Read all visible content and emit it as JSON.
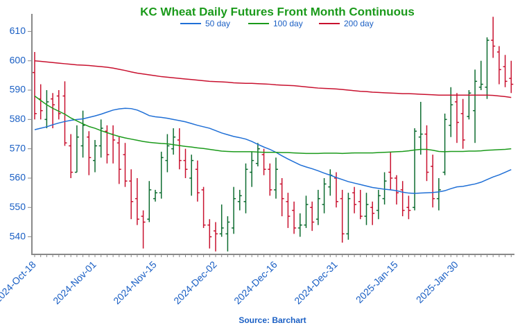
{
  "chart_data": {
    "type": "ohlc",
    "title": "KC Wheat Daily Futures Front Month Continuous",
    "source": "Source: Barchart",
    "categories": [
      "2024-Oct-18",
      null,
      null,
      null,
      null,
      null,
      null,
      null,
      null,
      null,
      "2024-Nov-01",
      null,
      null,
      null,
      null,
      null,
      null,
      null,
      null,
      null,
      "2024-Nov-15",
      null,
      null,
      null,
      null,
      null,
      null,
      null,
      null,
      null,
      "2024-Dec-02",
      null,
      null,
      null,
      null,
      null,
      null,
      null,
      null,
      null,
      "2024-Dec-16",
      null,
      null,
      null,
      null,
      null,
      null,
      null,
      null,
      null,
      "2024-Dec-31",
      null,
      null,
      null,
      null,
      null,
      null,
      null,
      null,
      null,
      "2025-Jan-15",
      null,
      null,
      null,
      null,
      null,
      null,
      null,
      null,
      null,
      "2025-Jan-30",
      null,
      null,
      null,
      null,
      null,
      null,
      null,
      null,
      null
    ],
    "open": [
      596,
      587,
      580,
      587,
      588,
      588,
      571,
      562,
      571,
      574,
      566,
      571,
      576,
      575,
      572,
      568,
      559,
      553,
      547,
      546,
      553,
      555,
      566,
      570,
      573,
      566,
      560,
      563,
      556,
      544,
      542,
      541,
      541,
      543,
      552,
      552,
      562,
      565,
      568,
      563,
      556,
      558,
      552,
      549,
      543,
      544,
      550,
      546,
      551,
      557,
      560,
      553,
      541,
      555,
      552,
      547,
      550,
      549,
      553,
      562,
      560,
      556,
      550,
      550,
      574,
      575,
      564,
      553,
      562,
      578,
      586,
      582,
      581,
      583,
      591,
      591,
      607,
      603,
      598,
      594
    ],
    "high": [
      603,
      592,
      590,
      589,
      590,
      593,
      575,
      578,
      583,
      576,
      573,
      580,
      578,
      578,
      574,
      572,
      563,
      560,
      549,
      559,
      556,
      569,
      575,
      577,
      577,
      570,
      568,
      566,
      557,
      546,
      545,
      551,
      547,
      557,
      556,
      565,
      569,
      572,
      570,
      565,
      567,
      560,
      555,
      552,
      548,
      554,
      552,
      556,
      560,
      563,
      562,
      556,
      555,
      557,
      556,
      555,
      552,
      556,
      562,
      569,
      561,
      559,
      554,
      577,
      586,
      578,
      568,
      560,
      582,
      591,
      589,
      587,
      590,
      597,
      600,
      608,
      615,
      605,
      602,
      600
    ],
    "low": [
      580,
      580,
      577,
      577,
      580,
      571,
      560,
      562,
      567,
      561,
      562,
      567,
      565,
      565,
      558,
      557,
      546,
      544,
      536,
      545,
      552,
      553,
      562,
      568,
      563,
      560,
      554,
      552,
      543,
      536,
      535,
      540,
      535,
      541,
      549,
      548,
      557,
      564,
      561,
      554,
      553,
      547,
      543,
      541,
      540,
      543,
      542,
      544,
      548,
      554,
      550,
      538,
      539,
      548,
      546,
      544,
      544,
      546,
      551,
      556,
      551,
      547,
      546,
      549,
      568,
      559,
      550,
      549,
      561,
      574,
      572,
      570,
      580,
      572,
      590,
      587,
      601,
      592,
      591,
      589
    ],
    "close": [
      582,
      583,
      586,
      585,
      582,
      572,
      562,
      574,
      578,
      567,
      571,
      577,
      568,
      573,
      563,
      559,
      552,
      546,
      545,
      556,
      555,
      567,
      571,
      574,
      566,
      563,
      566,
      555,
      544,
      540,
      541,
      543,
      545,
      553,
      554,
      563,
      566,
      570,
      563,
      556,
      563,
      553,
      547,
      543,
      544,
      551,
      545,
      553,
      558,
      561,
      552,
      541,
      553,
      551,
      547,
      551,
      548,
      554,
      559,
      560,
      555,
      549,
      549,
      576,
      575,
      562,
      553,
      556,
      580,
      585,
      579,
      573,
      589,
      593,
      592,
      607,
      605,
      597,
      593,
      592
    ],
    "up_color": "#0b6b2e",
    "down_color": "#c8102e",
    "series": [
      {
        "name": "50 day",
        "color": "#1f6fd6",
        "values": [
          576.5,
          577,
          577.5,
          578.2,
          578.8,
          579.3,
          579.7,
          580,
          580.2,
          580.7,
          581.2,
          581.8,
          582.5,
          583.2,
          583.6,
          583.8,
          583.7,
          583.2,
          582.3,
          581.3,
          580.9,
          580.7,
          580.4,
          580,
          579.6,
          579.2,
          578.6,
          578,
          577.5,
          577,
          576.2,
          575.4,
          574.8,
          574.2,
          573.8,
          573.3,
          572.5,
          571.5,
          570.6,
          569.8,
          568.8,
          567.6,
          566.5,
          565.5,
          564.5,
          563.8,
          563.2,
          562.5,
          561.7,
          561,
          560.2,
          559.5,
          558.8,
          558.3,
          557.8,
          557.3,
          556.8,
          556.5,
          556.2,
          556,
          555.7,
          555.2,
          554.9,
          554.8,
          554.9,
          555,
          555.1,
          555.3,
          555.7,
          556.4,
          557,
          557.2,
          557.6,
          558,
          558.6,
          559.5,
          560.4,
          561.1,
          562,
          562.9
        ]
      },
      {
        "name": "100 day",
        "color": "#1a9a1a",
        "values": [
          588,
          586.5,
          585,
          583.8,
          582.8,
          581.8,
          580.5,
          579.5,
          578.5,
          577.6,
          577,
          576.2,
          575.5,
          574.8,
          574.2,
          573.7,
          573.3,
          572.9,
          572.5,
          572.2,
          572,
          571.8,
          571.7,
          571.4,
          571.1,
          570.8,
          570.6,
          570.3,
          570.1,
          569.8,
          569.5,
          569.2,
          569.1,
          569,
          569,
          569,
          569,
          568.9,
          568.8,
          568.8,
          568.8,
          568.7,
          568.7,
          568.6,
          568.5,
          568.4,
          568.4,
          568.4,
          568.5,
          568.5,
          568.5,
          568.4,
          568.5,
          568.6,
          568.6,
          568.6,
          568.6,
          568.7,
          568.8,
          568.9,
          569,
          569.1,
          569.3,
          569.6,
          569.8,
          569.8,
          569.5,
          569.1,
          569,
          569.1,
          569.1,
          569.1,
          569.2,
          569.2,
          569.3,
          569.5,
          569.6,
          569.7,
          569.8,
          570
        ]
      },
      {
        "name": "200 day",
        "color": "#c8102e",
        "values": [
          600,
          599.8,
          599.6,
          599.4,
          599.2,
          599,
          598.8,
          598.6,
          598.5,
          598.4,
          598.2,
          598,
          597.8,
          597.5,
          597.1,
          596.7,
          596.2,
          595.8,
          595.5,
          595.2,
          594.9,
          594.6,
          594.4,
          594.2,
          594,
          593.8,
          593.6,
          593.4,
          593.2,
          593,
          592.9,
          592.8,
          592.7,
          592.5,
          592.4,
          592.3,
          592.3,
          592.2,
          592.1,
          592,
          591.8,
          591.7,
          591.6,
          591.5,
          591.3,
          591.1,
          590.9,
          590.7,
          590.6,
          590.5,
          590.4,
          590.2,
          590,
          589.8,
          589.6,
          589.5,
          589.3,
          589.2,
          589.1,
          589,
          588.9,
          588.8,
          588.8,
          588.7,
          588.6,
          588.5,
          588.4,
          588.3,
          588.3,
          588.3,
          588.3,
          588.3,
          588.3,
          588.3,
          588.3,
          588.3,
          588.2,
          588,
          587.8,
          587.5
        ]
      }
    ],
    "ylim": [
      534,
      616
    ],
    "yticks": [
      540,
      550,
      560,
      570,
      580,
      590,
      600,
      610
    ]
  }
}
